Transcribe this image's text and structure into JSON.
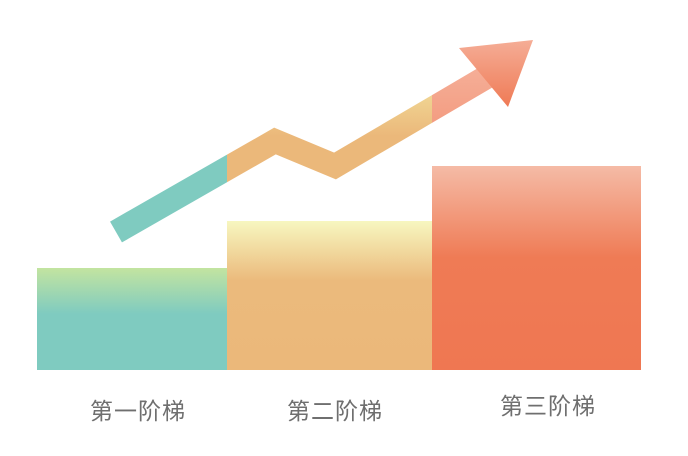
{
  "steps": [
    {
      "label": "第一阶梯",
      "level": 1,
      "color_top": "#bfe3a0",
      "color_bottom": "#7fcbc0"
    },
    {
      "label": "第二阶梯",
      "level": 2,
      "color_top": "#f6f5bd",
      "color_bottom": "#ebb87a"
    },
    {
      "label": "第三阶梯",
      "level": 3,
      "color_top": "#f5b8a3",
      "color_bottom": "#ef7752"
    }
  ],
  "arrow": {
    "direction": "up-right",
    "icon": "trend-arrow-icon"
  }
}
